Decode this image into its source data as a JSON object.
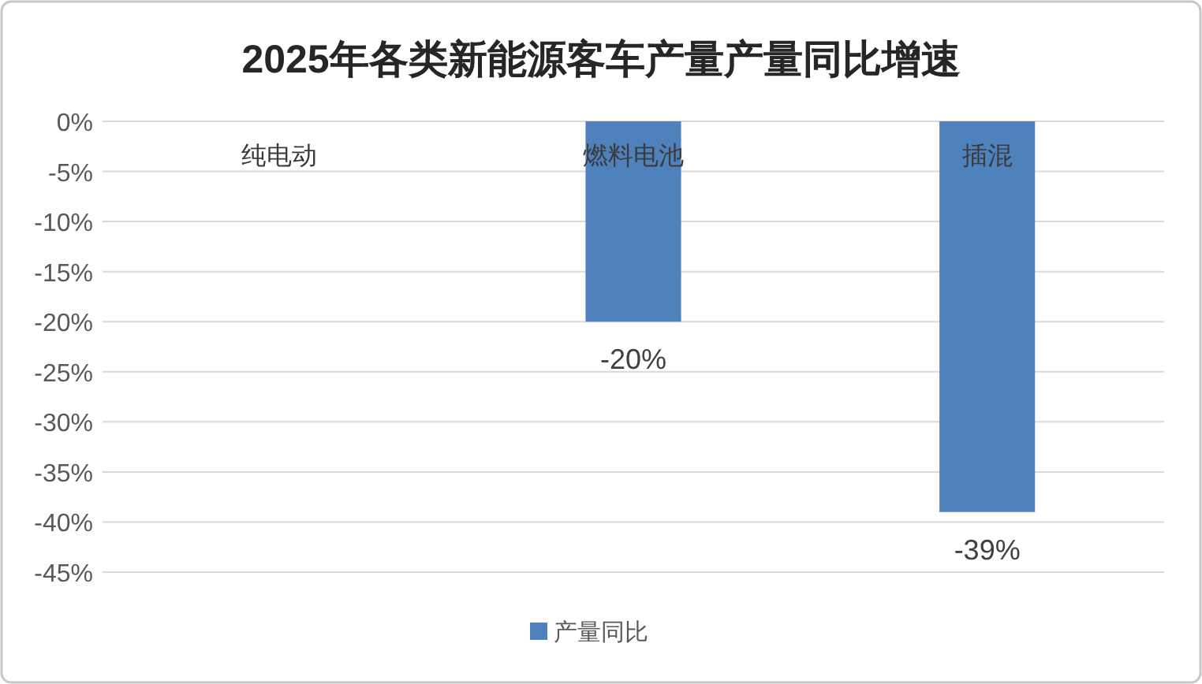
{
  "chart_data": {
    "type": "bar",
    "title": "2025年各类新能源客车产量产量同比增速",
    "categories": [
      "纯电动",
      "燃料电池",
      "插混"
    ],
    "series": [
      {
        "name": "产量同比",
        "color": "#4f81bd",
        "values": [
          null,
          -20,
          -39
        ],
        "value_labels": [
          null,
          "-20%",
          "-39%"
        ]
      }
    ],
    "ylim": [
      -45,
      0
    ],
    "yticks": [
      {
        "value": 0,
        "label": "0%"
      },
      {
        "value": -5,
        "label": "-5%"
      },
      {
        "value": -10,
        "label": "-10%"
      },
      {
        "value": -15,
        "label": "-15%"
      },
      {
        "value": -20,
        "label": "-20%"
      },
      {
        "value": -25,
        "label": "-25%"
      },
      {
        "value": -30,
        "label": "-30%"
      },
      {
        "value": -35,
        "label": "-35%"
      },
      {
        "value": -40,
        "label": "-40%"
      },
      {
        "value": -45,
        "label": "-45%"
      }
    ],
    "grid": "y",
    "legend": "bottom"
  }
}
